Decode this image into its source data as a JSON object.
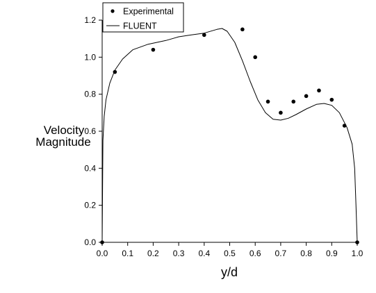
{
  "chart_data": {
    "type": "scatter",
    "xlabel": "y/d",
    "ylabel": [
      "Velocity",
      "Magnitude"
    ],
    "xlim": [
      0.0,
      1.0
    ],
    "ylim": [
      0.0,
      1.2
    ],
    "xticks": [
      "0.0",
      "0.1",
      "0.2",
      "0.3",
      "0.4",
      "0.5",
      "0.6",
      "0.7",
      "0.8",
      "0.9",
      "1.0"
    ],
    "yticks": [
      "0.0",
      "0.2",
      "0.4",
      "0.6",
      "0.8",
      "1.0",
      "1.2"
    ],
    "grid": false,
    "legend_position": "top-left",
    "series": [
      {
        "name": "Experimental",
        "kind": "markers",
        "color": "#000000",
        "x": [
          0.0,
          0.05,
          0.2,
          0.4,
          0.55,
          0.6,
          0.65,
          0.7,
          0.75,
          0.8,
          0.85,
          0.9,
          0.95,
          1.0
        ],
        "y": [
          0.0,
          0.92,
          1.04,
          1.12,
          1.15,
          1.0,
          0.76,
          0.7,
          0.76,
          0.79,
          0.82,
          0.77,
          0.63,
          0.0
        ]
      },
      {
        "name": "FLUENT",
        "kind": "line",
        "color": "#000000",
        "x": [
          0.0,
          0.003,
          0.008,
          0.015,
          0.03,
          0.05,
          0.08,
          0.12,
          0.18,
          0.25,
          0.3,
          0.35,
          0.4,
          0.45,
          0.47,
          0.49,
          0.52,
          0.55,
          0.58,
          0.61,
          0.64,
          0.67,
          0.7,
          0.73,
          0.76,
          0.8,
          0.84,
          0.87,
          0.9,
          0.93,
          0.96,
          0.98,
          0.99,
          0.995,
          1.0
        ],
        "y": [
          0.0,
          0.55,
          0.68,
          0.77,
          0.86,
          0.93,
          0.99,
          1.04,
          1.07,
          1.09,
          1.11,
          1.12,
          1.13,
          1.15,
          1.155,
          1.14,
          1.08,
          0.98,
          0.87,
          0.77,
          0.7,
          0.665,
          0.66,
          0.67,
          0.69,
          0.72,
          0.745,
          0.75,
          0.74,
          0.7,
          0.62,
          0.53,
          0.4,
          0.2,
          0.0
        ]
      }
    ]
  }
}
